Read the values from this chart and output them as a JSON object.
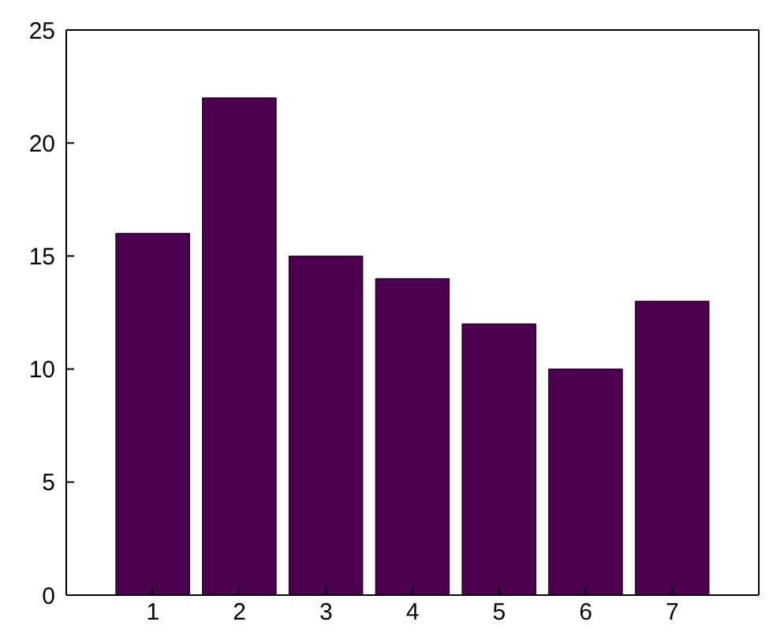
{
  "chart_data": {
    "type": "bar",
    "x": [
      1,
      2,
      3,
      4,
      5,
      6,
      7
    ],
    "values": [
      16,
      22,
      15,
      14,
      12,
      10,
      13
    ],
    "color": "#4b0050",
    "xlim": [
      0,
      8
    ],
    "xticks": [
      1,
      2,
      3,
      4,
      5,
      6,
      7
    ],
    "ylim": [
      0,
      25
    ],
    "yticks": [
      0,
      5,
      10,
      15,
      20,
      25
    ],
    "grid": false,
    "legend": false
  }
}
